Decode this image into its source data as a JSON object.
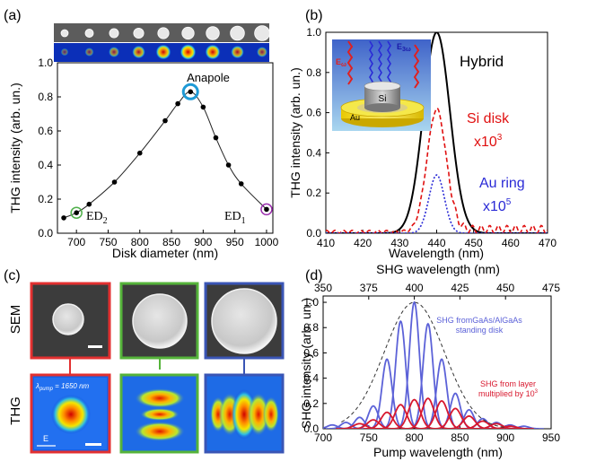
{
  "panel_labels": {
    "a": "(a)",
    "b": "(b)",
    "c": "(c)",
    "d": "(d)"
  },
  "chart_data": [
    {
      "panel": "a",
      "type": "scatter",
      "xlabel": "Disk diameter (nm)",
      "ylabel": "THG  intensity (arb. un.)",
      "xlim": [
        670,
        1010
      ],
      "ylim": [
        0,
        1.0
      ],
      "xticks": [
        "700",
        "750",
        "800",
        "850",
        "900",
        "950",
        "1000"
      ],
      "yticks": [
        "0.0",
        "0.2",
        "0.4",
        "0.6",
        "0.8",
        "1.0"
      ],
      "x": [
        680,
        700,
        720,
        760,
        800,
        840,
        860,
        880,
        900,
        920,
        940,
        960,
        1000
      ],
      "y": [
        0.09,
        0.12,
        0.17,
        0.3,
        0.47,
        0.66,
        0.76,
        0.83,
        0.74,
        0.56,
        0.4,
        0.29,
        0.14
      ],
      "annotations": {
        "anapole": "Anapole",
        "ed2": "ED",
        "ed2_sub": "2",
        "ed1": "ED",
        "ed1_sub": "1"
      }
    },
    {
      "panel": "b",
      "type": "line",
      "xlabel": "Wavelength (nm)",
      "ylabel": "THG  intensity (arb. un.)",
      "xlim": [
        410,
        470
      ],
      "ylim": [
        0,
        1.0
      ],
      "xticks": [
        "410",
        "420",
        "430",
        "440",
        "450",
        "460",
        "470"
      ],
      "yticks": [
        "0.0",
        "0.2",
        "0.4",
        "0.6",
        "0.8",
        "1.0"
      ],
      "series": [
        {
          "name": "Hybrid",
          "color": "#000000",
          "style": "solid",
          "center": 440,
          "sigma": 3.6,
          "amplitude": 1.0
        },
        {
          "name": "Si disk",
          "sub": "x10",
          "exp": "3",
          "color": "#e01010",
          "style": "dash",
          "center": 440,
          "sigma": 2.6,
          "amplitude": 0.61
        },
        {
          "name": "Au ring",
          "sub": "x10",
          "exp": "5",
          "color": "#2a2ad6",
          "style": "dot",
          "center": 440,
          "sigma": 2.1,
          "amplitude": 0.29
        }
      ],
      "inset": {
        "e_omega": "E",
        "e_omega_sub": "ω",
        "e_3omega": "E",
        "e_3omega_sub": "3ω",
        "si": "Si",
        "au": "Au"
      }
    },
    {
      "panel": "d",
      "type": "line",
      "xlabel": "Pump wavelength (nm)",
      "ylabel": "SHG  intensity (arb. un.)",
      "top_xlabel": "SHG wavelength (nm)",
      "xlim": [
        700,
        950
      ],
      "ylim": [
        0,
        1.05
      ],
      "xticks": [
        "700",
        "750",
        "800",
        "850",
        "900",
        "950"
      ],
      "top_xticks": [
        "350",
        "375",
        "400",
        "425",
        "450",
        "475"
      ],
      "yticks": [
        "0.0",
        "0.2",
        "0.4",
        "0.6",
        "0.8",
        "1.0"
      ],
      "envelope": {
        "center": 800,
        "sigma": 33,
        "amplitude": 1.0
      },
      "blue_peaks": [
        {
          "center": 710,
          "amplitude": 0.03
        },
        {
          "center": 725,
          "amplitude": 0.05
        },
        {
          "center": 740,
          "amplitude": 0.09
        },
        {
          "center": 755,
          "amplitude": 0.18
        },
        {
          "center": 770,
          "amplitude": 0.55
        },
        {
          "center": 785,
          "amplitude": 0.85
        },
        {
          "center": 800,
          "amplitude": 1.0
        },
        {
          "center": 815,
          "amplitude": 0.83
        },
        {
          "center": 830,
          "amplitude": 0.55
        },
        {
          "center": 845,
          "amplitude": 0.28
        },
        {
          "center": 860,
          "amplitude": 0.15
        },
        {
          "center": 875,
          "amplitude": 0.08
        },
        {
          "center": 890,
          "amplitude": 0.05
        },
        {
          "center": 905,
          "amplitude": 0.03
        },
        {
          "center": 920,
          "amplitude": 0.02
        }
      ],
      "red_peaks": [
        {
          "center": 740,
          "amplitude": 0.04
        },
        {
          "center": 755,
          "amplitude": 0.07
        },
        {
          "center": 770,
          "amplitude": 0.13
        },
        {
          "center": 785,
          "amplitude": 0.19
        },
        {
          "center": 800,
          "amplitude": 0.23
        },
        {
          "center": 815,
          "amplitude": 0.24
        },
        {
          "center": 830,
          "amplitude": 0.22
        },
        {
          "center": 845,
          "amplitude": 0.16
        },
        {
          "center": 860,
          "amplitude": 0.1
        },
        {
          "center": 875,
          "amplitude": 0.06
        },
        {
          "center": 890,
          "amplitude": 0.04
        },
        {
          "center": 905,
          "amplitude": 0.02
        }
      ],
      "legend_blue_line1": "SHG fromGaAs/AlGaAs",
      "legend_blue_line2": "standing disk",
      "legend_red_line1": "SHG from layer",
      "legend_red_line2": "multiplied by 10",
      "legend_red_exp": "3",
      "colors": {
        "blue": "#5c62d8",
        "red": "#d8182e"
      }
    }
  ],
  "panel_c": {
    "row_sem": "SEM",
    "row_thg": "THG",
    "lambda_label": "λ",
    "lambda_sub": "pump",
    "lambda_value": " = 1650 nm",
    "e_label": "E",
    "border_colors": [
      "#e23030",
      "#55b33a",
      "#3a55b5"
    ]
  }
}
